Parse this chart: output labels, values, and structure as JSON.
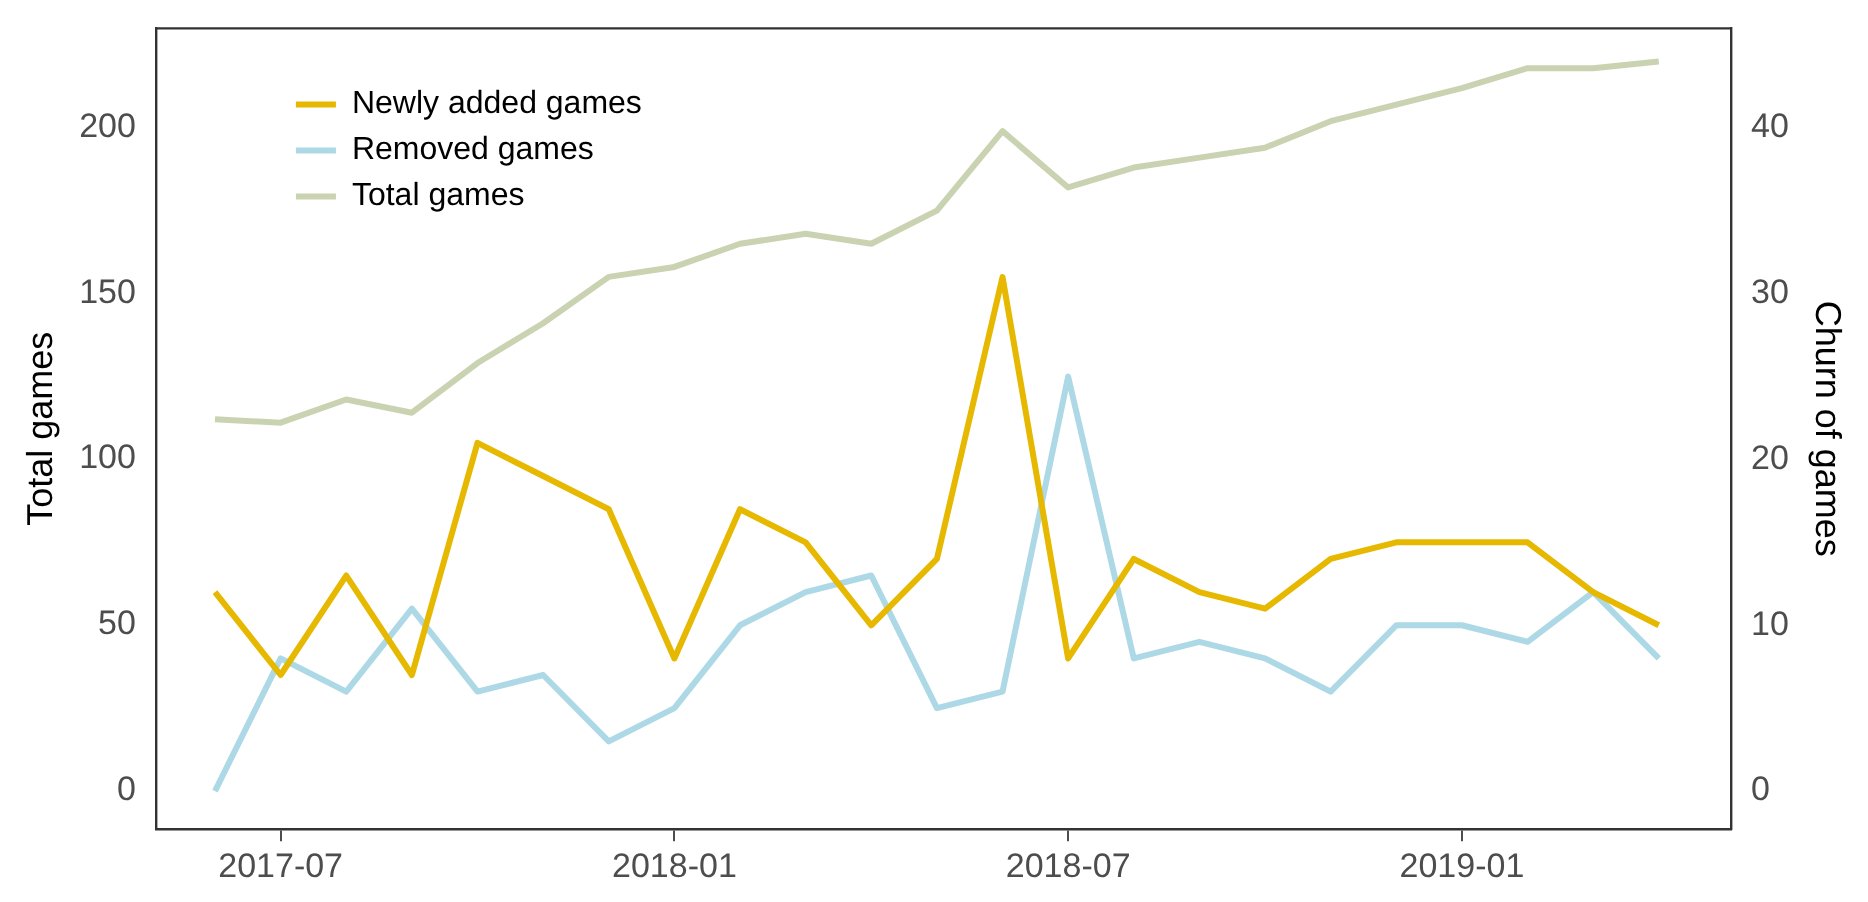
{
  "chart_data": {
    "type": "line",
    "xlabel": null,
    "ylabel": "Total games",
    "y2label": "Churn of games",
    "x": [
      "2017-06",
      "2017-07",
      "2017-08",
      "2017-09",
      "2017-10",
      "2017-11",
      "2017-12",
      "2018-01",
      "2018-02",
      "2018-03",
      "2018-04",
      "2018-05",
      "2018-06",
      "2018-07",
      "2018-08",
      "2018-09",
      "2018-10",
      "2018-11",
      "2018-12",
      "2019-01",
      "2019-02",
      "2019-03",
      "2019-04"
    ],
    "series": [
      {
        "name": "Newly added games",
        "color": "#e6b800",
        "axis": "y2",
        "values": [
          12,
          7,
          13,
          7,
          21,
          19,
          17,
          8,
          17,
          15,
          10,
          14,
          31,
          8,
          14,
          12,
          11,
          14,
          15,
          15,
          15,
          12,
          10
        ]
      },
      {
        "name": "Removed games",
        "color": "#add8e6",
        "axis": "y2",
        "values": [
          0,
          8,
          6,
          11,
          6,
          7,
          3,
          5,
          10,
          12,
          13,
          5,
          6,
          25,
          8,
          9,
          8,
          6,
          10,
          10,
          9,
          12,
          8
        ]
      },
      {
        "name": "Total games",
        "color": "#c9d3b1",
        "values": [
          112,
          111,
          118,
          114,
          129,
          141,
          155,
          158,
          165,
          168,
          165,
          175,
          199,
          182,
          188,
          191,
          194,
          202,
          207,
          212,
          218,
          218,
          220
        ]
      }
    ],
    "xlim": [
      "2017-05-04",
      "2019-05-04"
    ],
    "xticks": [
      "2017-07",
      "2018-01",
      "2018-07",
      "2019-01"
    ],
    "ylim": [
      -11.7,
      230
    ],
    "yticks": [
      0,
      50,
      100,
      150,
      200
    ],
    "y2lim": [
      -2.3,
      46
    ],
    "y2ticks": [
      0,
      10,
      20,
      30,
      40
    ],
    "grid": false,
    "legend": "top left",
    "marker": "none",
    "line_style": "solid"
  }
}
